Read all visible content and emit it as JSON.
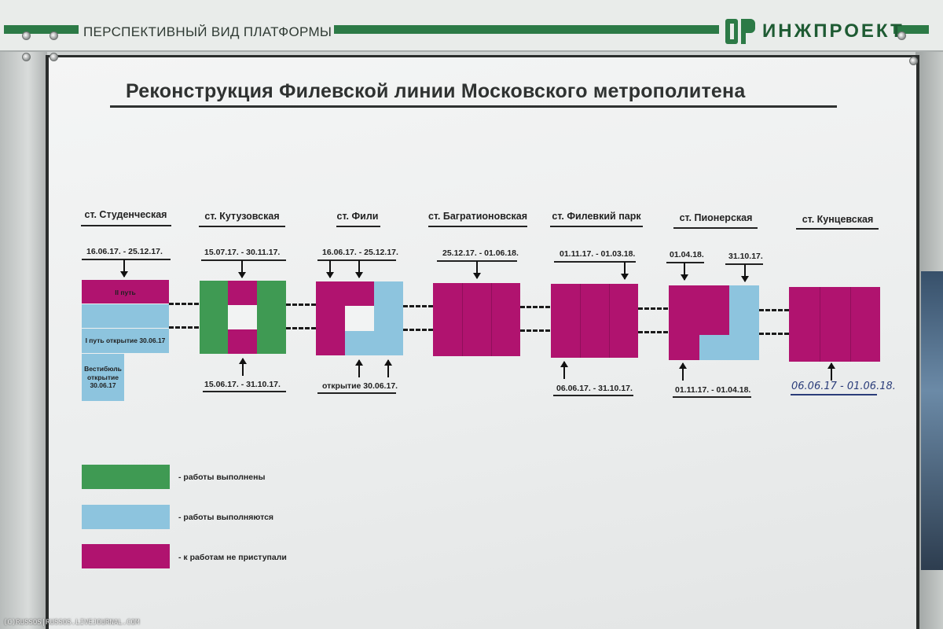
{
  "header": {
    "title": "ПЕРСПЕКТИВНЫЙ ВИД ПЛАТФОРМЫ",
    "logo_text": "ИНЖПРОЕКТ",
    "brand_color": "#2c7a46"
  },
  "board": {
    "title": "Реконструкция Филевской линии Московского метрополитена"
  },
  "stations": [
    {
      "name": "ст. Студенческая",
      "top_dates": [
        "16.06.17. - 25.12.17."
      ],
      "labels": [
        "II путь",
        "I путь открытие 30.06.17",
        "Вестибюль открытие 30.06.17"
      ]
    },
    {
      "name": "ст. Кутузовская",
      "top_dates": [
        "15.07.17. - 30.11.17."
      ],
      "bottom_dates": [
        "15.06.17. - 31.10.17."
      ]
    },
    {
      "name": "ст. Фили",
      "top_dates": [
        "16.06.17. - 25.12.17."
      ],
      "bottom_dates": [
        "открытие 30.06.17."
      ]
    },
    {
      "name": "ст. Багратионовская",
      "top_dates": [
        "25.12.17. - 01.06.18."
      ]
    },
    {
      "name": "ст. Филевкий парк",
      "top_dates": [
        "01.11.17. - 01.03.18."
      ],
      "bottom_dates": [
        "06.06.17. - 31.10.17."
      ]
    },
    {
      "name": "ст. Пионерская",
      "top_dates": [
        "01.04.18.",
        "31.10.17."
      ],
      "bottom_dates": [
        "01.11.17. - 01.04.18."
      ]
    },
    {
      "name": "ст. Кунцевская",
      "bottom_dates": [
        "06.06.17 - 01.06.18."
      ]
    }
  ],
  "legend": [
    {
      "color": "#3f9a53",
      "status": "completed",
      "label": "- работы выполнены"
    },
    {
      "color": "#8dc4de",
      "status": "in_progress",
      "label": "- работы выполняются"
    },
    {
      "color": "#b0136f",
      "status": "not_started",
      "label": "- к работам не приступали"
    }
  ],
  "watermark": "(C)RUSSOS|RUSSOS.LIVEJOURNAL.COM"
}
